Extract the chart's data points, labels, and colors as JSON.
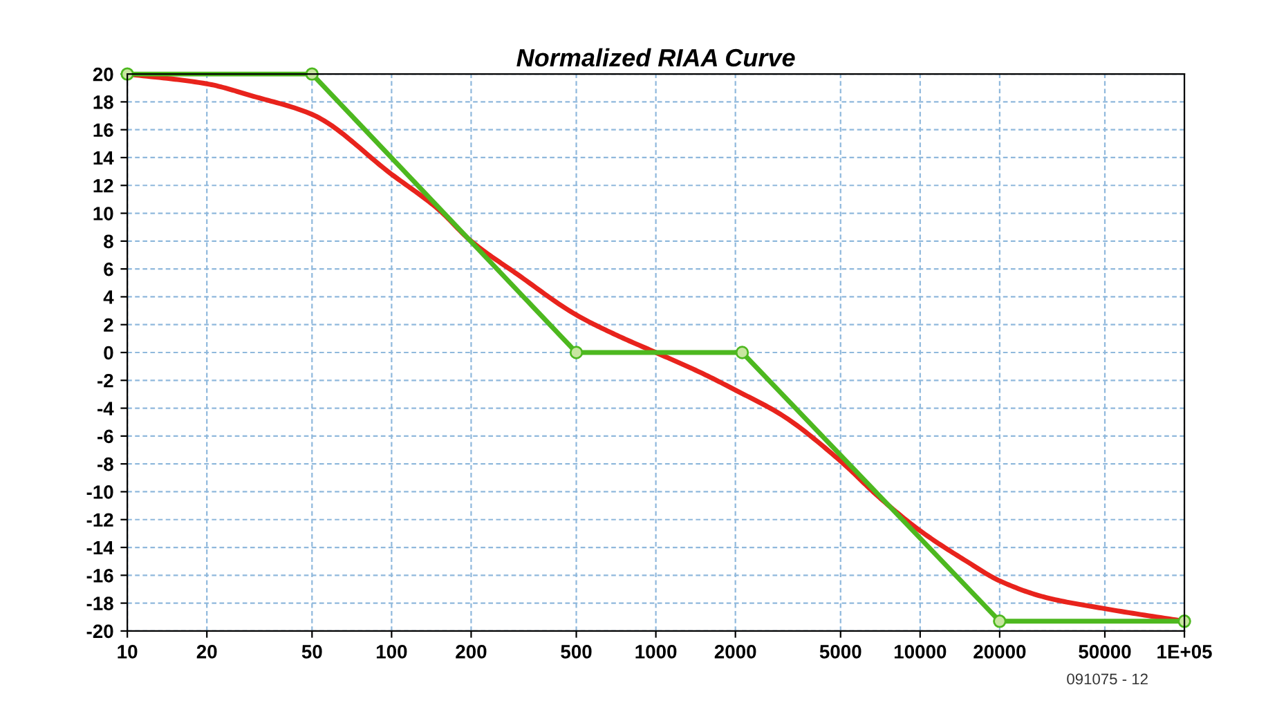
{
  "chart_data": {
    "type": "line",
    "title": "Normalized RIAA Curve",
    "log": "x",
    "grid": true,
    "xlim": [
      10,
      100000
    ],
    "xticks": [
      10,
      20,
      50,
      100,
      200,
      500,
      1000,
      2000,
      5000,
      10000,
      20000,
      50000,
      {
        "value": 100000,
        "label": "1E+05"
      }
    ],
    "ylim": [
      -20,
      20
    ],
    "yticks": [
      -20,
      -18,
      -16,
      -14,
      -12,
      -10,
      -8,
      -6,
      -4,
      -2,
      0,
      2,
      4,
      6,
      8,
      10,
      12,
      14,
      16,
      18,
      20
    ],
    "annotations": [
      "091075 - 12"
    ],
    "series": [
      {
        "color": "#e8231c",
        "marker": "none",
        "x": [
          10,
          20,
          30,
          50,
          100,
          150,
          200,
          300,
          500,
          700,
          1000,
          1500,
          2000,
          3000,
          5000,
          7000,
          10000,
          15000,
          20000,
          30000,
          50000,
          100000
        ],
        "values": [
          20,
          19.3,
          18.4,
          17.1,
          12.8,
          10.3,
          8.0,
          5.6,
          2.7,
          1.3,
          0,
          -1.5,
          -2.7,
          -4.5,
          -7.8,
          -10.4,
          -12.8,
          -15.0,
          -16.4,
          -17.6,
          -18.4,
          -19.3
        ]
      },
      {
        "color": "#4db81f",
        "marker": "circle",
        "x": [
          10,
          50,
          500,
          2122,
          20000,
          100000
        ],
        "values": [
          20,
          20,
          0,
          0,
          -19.3,
          -19.3
        ]
      }
    ]
  }
}
